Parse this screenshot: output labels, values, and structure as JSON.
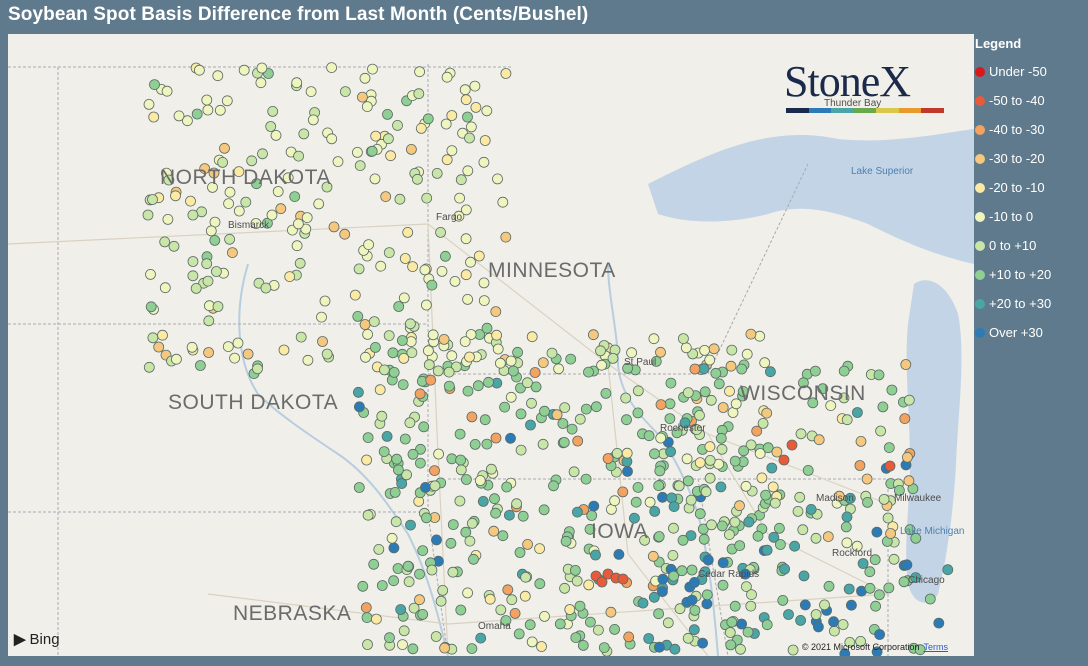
{
  "title": "Soybean Spot Basis Difference from Last Month (Cents/Bushel)",
  "legend": {
    "title": "Legend",
    "items": [
      {
        "label": "Under -50",
        "color": "#d7191c"
      },
      {
        "label": "-50 to -40",
        "color": "#e85b3a"
      },
      {
        "label": "-40 to -30",
        "color": "#f4a261"
      },
      {
        "label": "-30 to -20",
        "color": "#f6c87f"
      },
      {
        "label": "-20 to -10",
        "color": "#fbe9a4"
      },
      {
        "label": "-10 to 0",
        "color": "#f0f5c0"
      },
      {
        "label": "0 to +10",
        "color": "#c9e6a8"
      },
      {
        "label": "+10 to +20",
        "color": "#8fcf94"
      },
      {
        "label": "+20 to +30",
        "color": "#4aa6a6"
      },
      {
        "label": "Over +30",
        "color": "#2c7bb6"
      }
    ]
  },
  "brand": {
    "name": "StoneX",
    "bar_colors": [
      "#1b2a4a",
      "#2c7bb6",
      "#4aa6a6",
      "#6aa84f",
      "#d9c84a",
      "#e89a2b",
      "#c0392b"
    ]
  },
  "map": {
    "states": {
      "north_dakota": "NORTH DAKOTA",
      "south_dakota": "SOUTH DAKOTA",
      "nebraska": "NEBRASKA",
      "minnesota": "MINNESOTA",
      "wisconsin": "WISCONSIN",
      "iowa": "IOWA"
    },
    "cities": {
      "bismarck": "Bismarck",
      "fargo": "Fargo",
      "st_paul": "St Paul",
      "rochester": "Rochester",
      "madison": "Madison",
      "milwaukee": "Milwaukee",
      "rockford": "Rockford",
      "chicago": "Chicago",
      "cedar_rapids": "Cedar Rapids",
      "omaha": "Omaha",
      "thunder_bay": "Thunder Bay"
    },
    "water": {
      "lake_superior": "Lake Superior",
      "lake_michigan": "Lake Michigan"
    },
    "provider": "Bing",
    "copyright": "© 2021 Microsoft Corporation",
    "terms": "Terms"
  }
}
